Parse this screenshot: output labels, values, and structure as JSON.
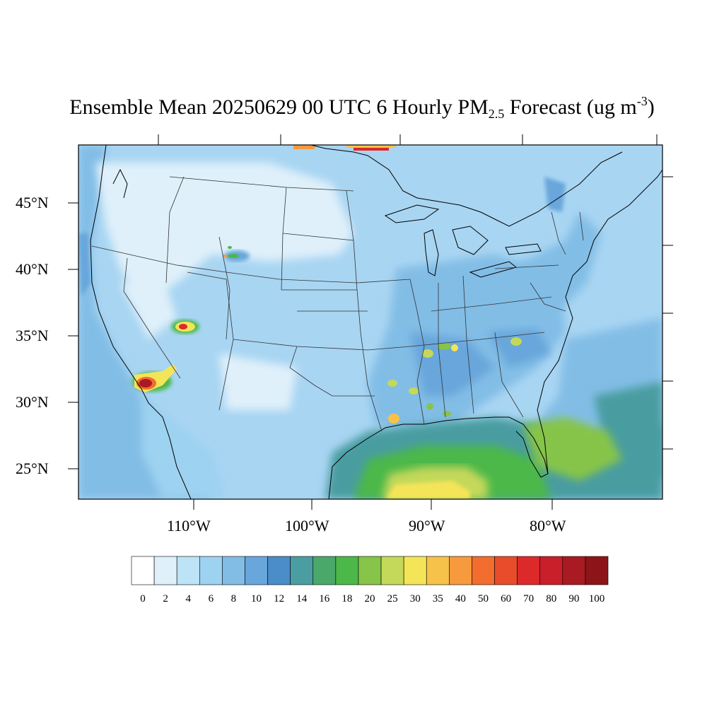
{
  "title": {
    "main": "Ensemble Mean 20250629 00 UTC 6 Hourly PM",
    "subscript": "2.5",
    "mid": " Forecast (ug m",
    "superscript": "-3",
    "end": ")"
  },
  "lat_labels": [
    "45°N",
    "40°N",
    "35°N",
    "30°N",
    "25°N"
  ],
  "lon_labels": [
    "110°W",
    "100°W",
    "90°W",
    "80°W"
  ],
  "colorbar": {
    "labels": [
      "0",
      "2",
      "4",
      "6",
      "8",
      "10",
      "12",
      "14",
      "16",
      "18",
      "20",
      "25",
      "30",
      "35",
      "40",
      "50",
      "60",
      "70",
      "80",
      "90",
      "100"
    ],
    "colors": [
      "#ffffff",
      "#dff0fa",
      "#bde3f6",
      "#9dd2f0",
      "#82bde6",
      "#68a6db",
      "#4b8dc9",
      "#4a9da0",
      "#4aa86a",
      "#4cb84a",
      "#86c44a",
      "#c4d85a",
      "#f4e558",
      "#f7c24a",
      "#f79a3e",
      "#f26d2e",
      "#e84c2a",
      "#dc2a2a",
      "#c81f2a",
      "#a91a22",
      "#8c1519"
    ],
    "ticks": [
      0,
      2,
      4,
      6,
      8,
      10,
      12,
      14,
      16,
      18,
      20,
      25,
      30,
      35,
      40,
      50,
      60,
      70,
      80,
      90,
      100
    ]
  },
  "map": {
    "background_color": "#a8d5f2",
    "fields": [
      {
        "name": "pacific-coast-haze",
        "value": 8
      },
      {
        "name": "northern-plains-clean",
        "value": 2
      },
      {
        "name": "southeast-moderate",
        "value": 10
      },
      {
        "name": "gulf-of-mexico-high",
        "value": 18
      },
      {
        "name": "gulf-core",
        "value": 30
      },
      {
        "name": "atlantic-moderate",
        "value": 14
      },
      {
        "name": "southern-california-fire",
        "value": 100
      },
      {
        "name": "utah-fire",
        "value": 80
      },
      {
        "name": "wyoming-fire",
        "value": 40
      },
      {
        "name": "canada-smoke",
        "value": 60
      },
      {
        "name": "tennessee-valley",
        "value": 25
      },
      {
        "name": "louisiana-hotspot",
        "value": 30
      }
    ]
  }
}
